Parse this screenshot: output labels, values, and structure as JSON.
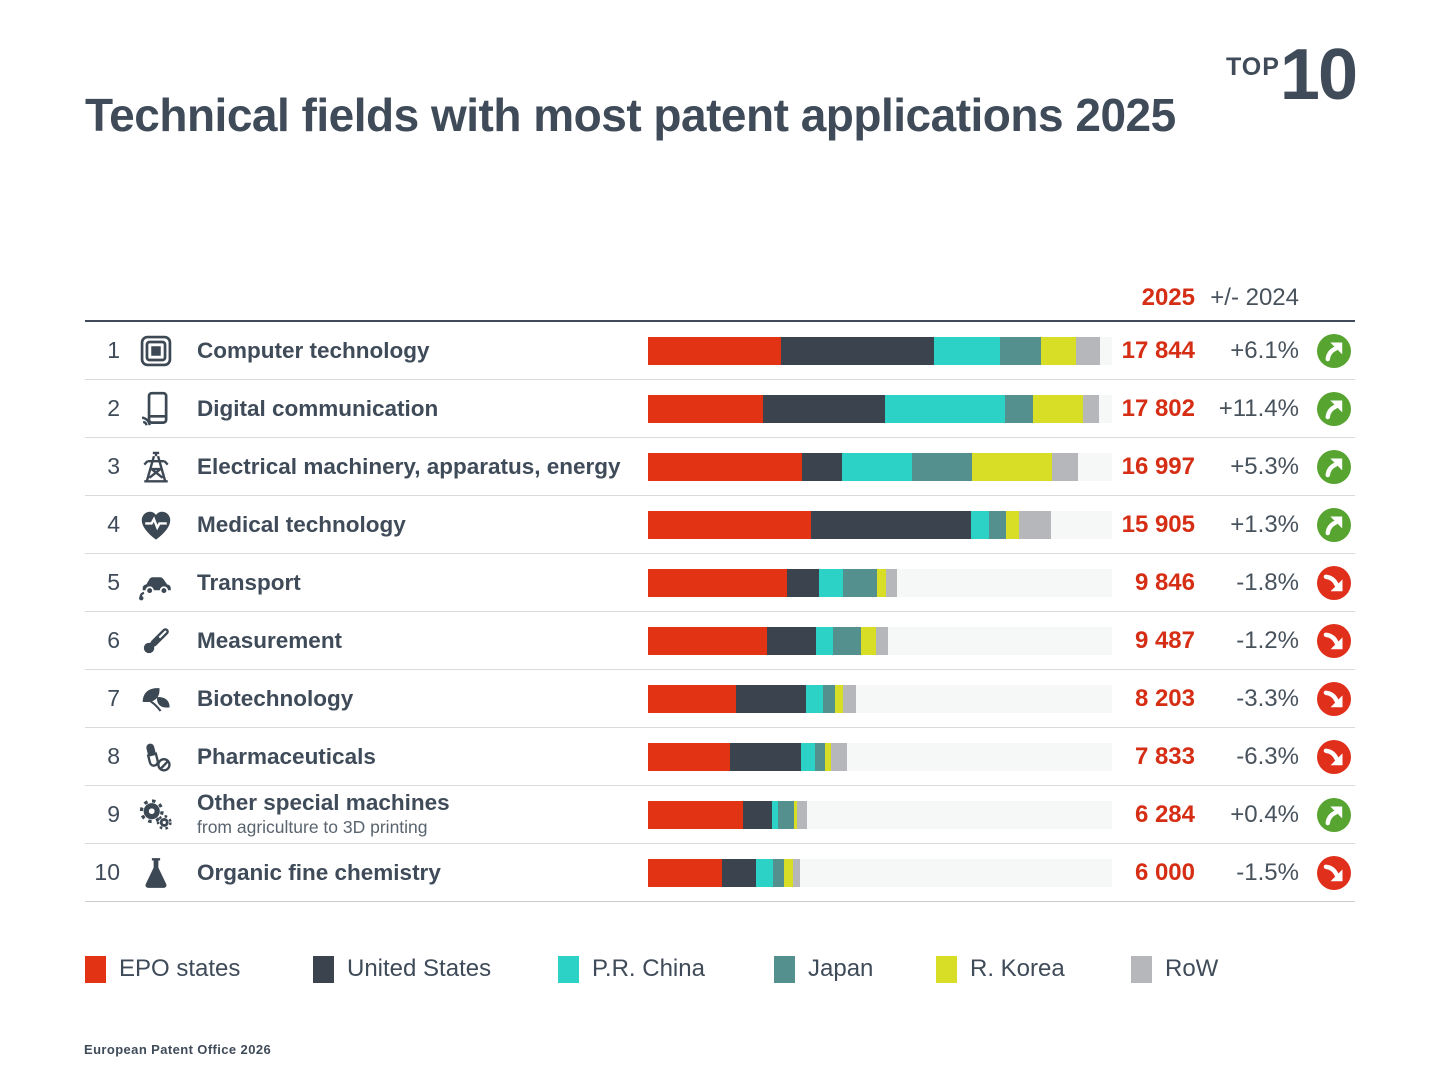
{
  "header": {
    "title": "Technical fields with most patent applications 2025",
    "top_label": "TOP",
    "top_number": "10"
  },
  "table": {
    "col_2025": "2025",
    "col_change": "+/- 2024",
    "rows": [
      {
        "rank": "1",
        "icon": "chip-icon",
        "label": "Computer technology",
        "sublabel": "",
        "value": "17 844",
        "change": "+6.1%",
        "trend": "up"
      },
      {
        "rank": "2",
        "icon": "smartphone-icon",
        "label": "Digital communication",
        "sublabel": "",
        "value": "17 802",
        "change": "+11.4%",
        "trend": "up"
      },
      {
        "rank": "3",
        "icon": "pylon-icon",
        "label": "Electrical machinery, apparatus, energy",
        "sublabel": "",
        "value": "16 997",
        "change": "+5.3%",
        "trend": "up"
      },
      {
        "rank": "4",
        "icon": "heart-pulse-icon",
        "label": "Medical technology",
        "sublabel": "",
        "value": "15 905",
        "change": "+1.3%",
        "trend": "up"
      },
      {
        "rank": "5",
        "icon": "electric-car-icon",
        "label": "Transport",
        "sublabel": "",
        "value": "9 846",
        "change": "-1.8%",
        "trend": "down"
      },
      {
        "rank": "6",
        "icon": "thermometer-icon",
        "label": "Measurement",
        "sublabel": "",
        "value": "9 487",
        "change": "-1.2%",
        "trend": "down"
      },
      {
        "rank": "7",
        "icon": "leaves-icon",
        "label": "Biotechnology",
        "sublabel": "",
        "value": "8 203",
        "change": "-3.3%",
        "trend": "down"
      },
      {
        "rank": "8",
        "icon": "pills-icon",
        "label": "Pharmaceuticals",
        "sublabel": "",
        "value": "7 833",
        "change": "-6.3%",
        "trend": "down"
      },
      {
        "rank": "9",
        "icon": "gears-icon",
        "label": "Other special machines",
        "sublabel": "from agriculture to 3D printing",
        "value": "6 284",
        "change": "+0.4%",
        "trend": "up"
      },
      {
        "rank": "10",
        "icon": "flask-icon",
        "label": "Organic fine chemistry",
        "sublabel": "",
        "value": "6 000",
        "change": "-1.5%",
        "trend": "down"
      }
    ]
  },
  "chart_data": {
    "type": "bar",
    "orientation": "horizontal-stacked",
    "title": "Technical fields with most patent applications 2025",
    "categories": [
      "Computer technology",
      "Digital communication",
      "Electrical machinery, apparatus, energy",
      "Medical technology",
      "Transport",
      "Measurement",
      "Biotechnology",
      "Pharmaceuticals",
      "Other special machines",
      "Organic fine chemistry"
    ],
    "totals": [
      17844,
      17802,
      16997,
      15905,
      9846,
      9487,
      8203,
      7833,
      6284,
      6000
    ],
    "change_vs_2024_pct": [
      6.1,
      11.4,
      5.3,
      1.3,
      -1.8,
      -1.2,
      -3.3,
      -6.3,
      0.4,
      -1.5
    ],
    "xmax": 17844,
    "legend_position": "bottom",
    "series": [
      {
        "name": "EPO states",
        "color": "#e23414",
        "values": [
          5240,
          4540,
          6075,
          6435,
          5495,
          4705,
          3470,
          3220,
          3755,
          2900
        ]
      },
      {
        "name": "United States",
        "color": "#3b434e",
        "values": [
          6065,
          4815,
          1575,
          6315,
          1265,
          1935,
          2760,
          2825,
          1145,
          1350
        ]
      },
      {
        "name": "P.R. China",
        "color": "#2bd2c5",
        "values": [
          2600,
          4735,
          2760,
          720,
          950,
          670,
          670,
          555,
          235,
          675
        ]
      },
      {
        "name": "Japan",
        "color": "#53908e",
        "values": [
          1615,
          1105,
          2365,
          680,
          1345,
          1105,
          475,
          400,
          630,
          435
        ]
      },
      {
        "name": "R. Korea",
        "color": "#d8dd25",
        "values": [
          1380,
          1975,
          3195,
          480,
          355,
          595,
          315,
          240,
          120,
          360
        ]
      },
      {
        "name": "RoW",
        "color": "#b5b7ba",
        "values": [
          945,
          630,
          1025,
          1275,
          435,
          475,
          515,
          595,
          395,
          280
        ]
      }
    ]
  },
  "legend": {
    "items": [
      {
        "label": "EPO states",
        "color": "#e23414"
      },
      {
        "label": "United States",
        "color": "#3b434e"
      },
      {
        "label": "P.R. China",
        "color": "#2bd2c5"
      },
      {
        "label": "Japan",
        "color": "#53908e"
      },
      {
        "label": "R. Korea",
        "color": "#d8dd25"
      },
      {
        "label": "RoW",
        "color": "#b5b7ba"
      }
    ]
  },
  "footer": "European Patent Office 2026",
  "colors": {
    "slate": "#3f4b59",
    "red_text": "#d62e15",
    "gray_text": "#47525c",
    "sub_text": "#5a646e",
    "sep": "#d9dbdd",
    "sep_dark": "#c8ccd0",
    "track": "#f6f7f7",
    "badge_up": "#57a430",
    "badge_down": "#e0301c",
    "icon": "#3c4854"
  }
}
